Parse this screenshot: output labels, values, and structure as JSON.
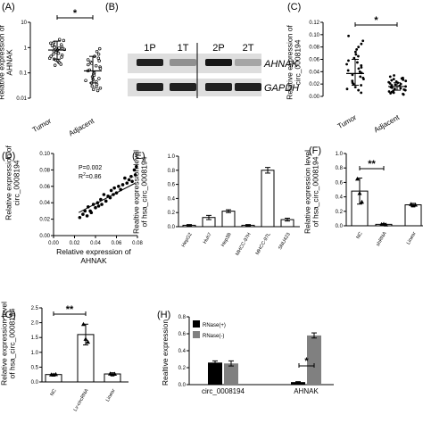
{
  "colors": {
    "axis": "#000000",
    "bar_white": "#ffffff",
    "bar_black": "#000000",
    "bar_gray": "#808080",
    "dot_fill": "#000000",
    "dot_hollow": "#ffffff"
  },
  "chart_data": [
    {
      "panel": "(A)",
      "type": "scatter",
      "ylabel": "Relative expression of\nAHNAK",
      "yscale": "log",
      "ylim": [
        0.01,
        10
      ],
      "yticks": [
        "10",
        "1",
        "0.1",
        "0.01"
      ],
      "categories": [
        "Tumor",
        "Adjacent"
      ],
      "groups": [
        {
          "name": "Tumor",
          "points": [
            2.1,
            1.9,
            1.6,
            1.5,
            1.4,
            1.3,
            1.2,
            1.1,
            1.05,
            1.0,
            0.95,
            0.9,
            0.85,
            0.8,
            0.75,
            0.7,
            0.65,
            0.6,
            0.55,
            0.5,
            0.45,
            0.42,
            0.38,
            0.35,
            0.32,
            0.3,
            0.27,
            0.25,
            0.22,
            0.2
          ],
          "mean": 0.8,
          "sd_low": 0.35,
          "sd_high": 1.8
        },
        {
          "name": "Adjacent",
          "points": [
            0.9,
            0.7,
            0.55,
            0.45,
            0.38,
            0.33,
            0.3,
            0.27,
            0.24,
            0.21,
            0.19,
            0.17,
            0.15,
            0.13,
            0.12,
            0.1,
            0.09,
            0.08,
            0.07,
            0.06,
            0.055,
            0.05,
            0.045,
            0.04,
            0.035,
            0.03,
            0.028,
            0.025,
            0.022,
            0.02
          ],
          "mean": 0.12,
          "sd_low": 0.04,
          "sd_high": 0.45
        }
      ],
      "significance": "*"
    },
    {
      "panel": "(B)",
      "type": "western-blot",
      "lanes": [
        "1P",
        "1T",
        "2P",
        "2T"
      ],
      "rows": [
        "AHNAK",
        "GAPDH"
      ]
    },
    {
      "panel": "(C)",
      "type": "scatter",
      "ylabel": "Relative expression of\ncirc_0008194",
      "ylim": [
        0,
        0.12
      ],
      "yticks": [
        "0.00",
        "0.02",
        "0.04",
        "0.06",
        "0.08",
        "0.10",
        "0.12"
      ],
      "categories": [
        "Tumor",
        "Adjacent"
      ],
      "groups": [
        {
          "name": "Tumor",
          "points": [
            0.098,
            0.09,
            0.085,
            0.08,
            0.076,
            0.072,
            0.068,
            0.065,
            0.062,
            0.058,
            0.055,
            0.052,
            0.05,
            0.047,
            0.045,
            0.042,
            0.04,
            0.038,
            0.035,
            0.032,
            0.03,
            0.028,
            0.025,
            0.022,
            0.02,
            0.018,
            0.015,
            0.012,
            0.01,
            0.006
          ],
          "mean": 0.037,
          "sd_low": 0.018,
          "sd_high": 0.06
        },
        {
          "name": "Adjacent",
          "points": [
            0.034,
            0.032,
            0.03,
            0.029,
            0.028,
            0.027,
            0.026,
            0.025,
            0.024,
            0.023,
            0.022,
            0.021,
            0.02,
            0.019,
            0.018,
            0.017,
            0.016,
            0.015,
            0.014,
            0.013,
            0.012,
            0.011,
            0.01,
            0.009,
            0.008,
            0.007,
            0.006,
            0.005,
            0.004,
            0.003
          ],
          "mean": 0.016,
          "sd_low": 0.01,
          "sd_high": 0.022
        }
      ],
      "significance": "*"
    },
    {
      "panel": "(D)",
      "type": "scatter",
      "xlabel": "Relative expression of\nAHNAK",
      "ylabel": "Relative expression of\ncirc_0008194",
      "xlim": [
        0,
        0.08
      ],
      "ylim": [
        0,
        0.1
      ],
      "xticks": [
        "0.00",
        "0.02",
        "0.04",
        "0.06",
        "0.08"
      ],
      "yticks": [
        "0.00",
        "0.02",
        "0.04",
        "0.06",
        "0.08",
        "0.10"
      ],
      "stat_p": "P=0.002",
      "stat_r2_label": "R",
      "stat_r2_sup": "2",
      "stat_r2_value": "=0.86",
      "fit": [
        [
          0.024,
          0.028
        ],
        [
          0.078,
          0.064
        ]
      ],
      "points": [
        [
          0.025,
          0.022
        ],
        [
          0.028,
          0.026
        ],
        [
          0.03,
          0.03
        ],
        [
          0.032,
          0.024
        ],
        [
          0.033,
          0.035
        ],
        [
          0.035,
          0.03
        ],
        [
          0.036,
          0.028
        ],
        [
          0.038,
          0.038
        ],
        [
          0.04,
          0.034
        ],
        [
          0.042,
          0.04
        ],
        [
          0.043,
          0.036
        ],
        [
          0.045,
          0.044
        ],
        [
          0.046,
          0.038
        ],
        [
          0.048,
          0.05
        ],
        [
          0.05,
          0.042
        ],
        [
          0.052,
          0.048
        ],
        [
          0.054,
          0.046
        ],
        [
          0.055,
          0.055
        ],
        [
          0.057,
          0.05
        ],
        [
          0.058,
          0.058
        ],
        [
          0.06,
          0.052
        ],
        [
          0.062,
          0.06
        ],
        [
          0.064,
          0.056
        ],
        [
          0.066,
          0.062
        ],
        [
          0.068,
          0.07
        ],
        [
          0.07,
          0.064
        ],
        [
          0.072,
          0.068
        ],
        [
          0.074,
          0.072
        ],
        [
          0.075,
          0.066
        ],
        [
          0.077,
          0.08
        ],
        [
          0.078,
          0.074
        ],
        [
          0.079,
          0.084
        ]
      ]
    },
    {
      "panel": "(E)",
      "type": "bar",
      "ylabel": "Realtive expression level\nof hsa_circ_0008194",
      "ylim": [
        0,
        1.0
      ],
      "yticks": [
        "0.0",
        "0.2",
        "0.4",
        "0.6",
        "0.8",
        "1.0"
      ],
      "categories": [
        "HepG2",
        "Huh7",
        "Hep3B",
        "MHCC-97H",
        "MHCC-97L",
        "SNU423"
      ],
      "values": [
        0.02,
        0.13,
        0.22,
        0.02,
        0.8,
        0.1
      ],
      "errors": [
        0.01,
        0.03,
        0.02,
        0.01,
        0.04,
        0.02
      ]
    },
    {
      "panel": "(F)",
      "type": "bar",
      "ylabel": "Relative expression level\nof hsa_circ_0008194",
      "ylim": [
        0,
        1.0
      ],
      "yticks": [
        "0.0",
        "0.2",
        "0.4",
        "0.6",
        "0.8",
        "1.0"
      ],
      "categories": [
        "NC",
        "shRNA",
        "Linear"
      ],
      "values": [
        0.48,
        0.02,
        0.29
      ],
      "errors": [
        0.18,
        0.01,
        0.02
      ],
      "points": [
        [
          0.65,
          0.45,
          0.33
        ],
        [
          0.02,
          0.025,
          0.015
        ],
        [
          0.3,
          0.28,
          0.29
        ]
      ],
      "significance": "**"
    },
    {
      "panel": "(G)",
      "type": "bar",
      "ylabel": "Relative expression level\nof hsa_circ_0008194",
      "ylim": [
        0,
        2.5
      ],
      "yticks": [
        "0.0",
        "0.5",
        "1.0",
        "1.5",
        "2.0",
        "2.5"
      ],
      "categories": [
        "NC",
        "Lv-circRNA",
        "Linear"
      ],
      "values": [
        0.25,
        1.6,
        0.27
      ],
      "errors": [
        0.02,
        0.35,
        0.04
      ],
      "points": [
        [
          0.25,
          0.24,
          0.26
        ],
        [
          1.95,
          1.45,
          1.35
        ],
        [
          0.28,
          0.25,
          0.27
        ]
      ],
      "significance": "**"
    },
    {
      "panel": "(H)",
      "type": "bar",
      "ylabel": "Realtive expression",
      "ylim": [
        0,
        0.8
      ],
      "yticks": [
        "0.0",
        "0.2",
        "0.4",
        "0.6",
        "0.8"
      ],
      "categories": [
        "circ_0008194",
        "AHNAK"
      ],
      "series": [
        {
          "name": "RNase(+)",
          "values": [
            0.26,
            0.03
          ],
          "errors": [
            0.02,
            0.005
          ]
        },
        {
          "name": "RNase(-)",
          "values": [
            0.25,
            0.58
          ],
          "errors": [
            0.03,
            0.03
          ]
        }
      ],
      "legend": "top-left",
      "significance": "*"
    }
  ]
}
